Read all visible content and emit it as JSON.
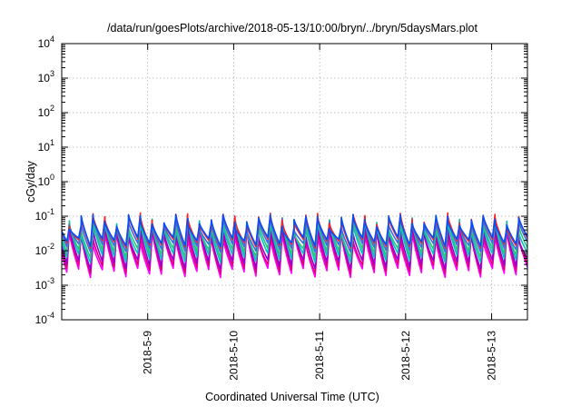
{
  "chart_data": {
    "type": "line",
    "title": "/data/run/goesPlots/archive/2018-05-13/10:00/bryn/../bryn/5daysMars.plot",
    "xlabel": "Coordinated Universal Time (UTC)",
    "ylabel": "cGy/day",
    "x_scale": "time",
    "xlim": [
      "2018-05-08T00:00",
      "2018-05-13T10:00"
    ],
    "y_scale": "log",
    "ylim": [
      0.0001,
      10000
    ],
    "grid": true,
    "x_ticks": [
      {
        "value": "2018-05-09T00:00",
        "label": "2018-5-9"
      },
      {
        "value": "2018-05-10T00:00",
        "label": "2018-5-10"
      },
      {
        "value": "2018-05-11T00:00",
        "label": "2018-5-11"
      },
      {
        "value": "2018-05-12T00:00",
        "label": "2018-5-12"
      },
      {
        "value": "2018-05-13T00:00",
        "label": "2018-5-13"
      }
    ],
    "y_ticks": [
      {
        "value": 0.0001,
        "base": "10",
        "exp": "-4"
      },
      {
        "value": 0.001,
        "base": "10",
        "exp": "-3"
      },
      {
        "value": 0.01,
        "base": "10",
        "exp": "-2"
      },
      {
        "value": 0.1,
        "base": "10",
        "exp": "-1"
      },
      {
        "value": 1,
        "base": "10",
        "exp": "0"
      },
      {
        "value": 10,
        "base": "10",
        "exp": "1"
      },
      {
        "value": 100,
        "base": "10",
        "exp": "2"
      },
      {
        "value": 1000,
        "base": "10",
        "exp": "3"
      },
      {
        "value": 10000,
        "base": "10",
        "exp": "4"
      }
    ],
    "pattern": {
      "cycle_hours": 3.3,
      "description_free": true
    },
    "series": [
      {
        "color": "#ff00ff",
        "peak": 0.028,
        "trough": 0.0024
      },
      {
        "color": "#e0007a",
        "peak": 0.034,
        "trough": 0.0031
      },
      {
        "color": "#9400d3",
        "peak": 0.042,
        "trough": 0.0042
      },
      {
        "color": "#00c0c0",
        "peak": 0.055,
        "trough": 0.0065
      },
      {
        "color": "#2ec27e",
        "peak": 0.062,
        "trough": 0.009
      },
      {
        "color": "#4169e1",
        "peak": 0.07,
        "trough": 0.013
      },
      {
        "color": "#ff2020",
        "peak": 0.082,
        "trough": 0.017
      },
      {
        "color": "#0050ff",
        "peak": 0.075,
        "trough": 0.019
      }
    ]
  }
}
